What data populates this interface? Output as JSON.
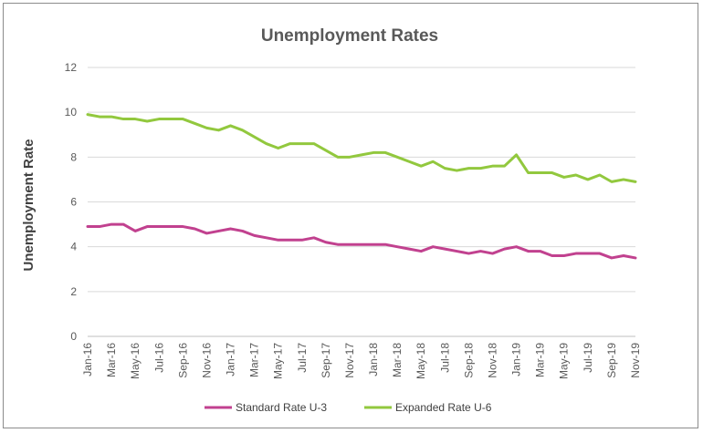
{
  "chart_data": {
    "type": "line",
    "title": "Unemployment Rates",
    "xlabel": "",
    "ylabel": "Unemployment Rate",
    "ylim": [
      0,
      12
    ],
    "yticks": [
      0,
      2,
      4,
      6,
      8,
      10,
      12
    ],
    "grid": "horizontal",
    "legend": "bottom",
    "x": [
      "Jan-16",
      "Feb-16",
      "Mar-16",
      "Apr-16",
      "May-16",
      "Jun-16",
      "Jul-16",
      "Aug-16",
      "Sep-16",
      "Oct-16",
      "Nov-16",
      "Dec-16",
      "Jan-17",
      "Feb-17",
      "Mar-17",
      "Apr-17",
      "May-17",
      "Jun-17",
      "Jul-17",
      "Aug-17",
      "Sep-17",
      "Oct-17",
      "Nov-17",
      "Dec-17",
      "Jan-18",
      "Feb-18",
      "Mar-18",
      "Apr-18",
      "May-18",
      "Jun-18",
      "Jul-18",
      "Aug-18",
      "Sep-18",
      "Oct-18",
      "Nov-18",
      "Dec-18",
      "Jan-19",
      "Feb-19",
      "Mar-19",
      "Apr-19",
      "May-19",
      "Jun-19",
      "Jul-19",
      "Aug-19",
      "Sep-19",
      "Oct-19",
      "Nov-19"
    ],
    "x_tick_labels": [
      "Jan-16",
      "Mar-16",
      "May-16",
      "Jul-16",
      "Sep-16",
      "Nov-16",
      "Jan-17",
      "Mar-17",
      "May-17",
      "Jul-17",
      "Sep-17",
      "Nov-17",
      "Jan-18",
      "Mar-18",
      "May-18",
      "Jul-18",
      "Sep-18",
      "Nov-18",
      "Jan-19",
      "Mar-19",
      "May-19",
      "Jul-19",
      "Sep-19",
      "Nov-19"
    ],
    "series": [
      {
        "name": "Standard Rate U-3",
        "color": "#c1418f",
        "values": [
          4.9,
          4.9,
          5.0,
          5.0,
          4.7,
          4.9,
          4.9,
          4.9,
          4.9,
          4.8,
          4.6,
          4.7,
          4.8,
          4.7,
          4.5,
          4.4,
          4.3,
          4.3,
          4.3,
          4.4,
          4.2,
          4.1,
          4.1,
          4.1,
          4.1,
          4.1,
          4.0,
          3.9,
          3.8,
          4.0,
          3.9,
          3.8,
          3.7,
          3.8,
          3.7,
          3.9,
          4.0,
          3.8,
          3.8,
          3.6,
          3.6,
          3.7,
          3.7,
          3.7,
          3.5,
          3.6,
          3.5
        ]
      },
      {
        "name": "Expanded Rate U-6",
        "color": "#92c83e",
        "values": [
          9.9,
          9.8,
          9.8,
          9.7,
          9.7,
          9.6,
          9.7,
          9.7,
          9.7,
          9.5,
          9.3,
          9.2,
          9.4,
          9.2,
          8.9,
          8.6,
          8.4,
          8.6,
          8.6,
          8.6,
          8.3,
          8.0,
          8.0,
          8.1,
          8.2,
          8.2,
          8.0,
          7.8,
          7.6,
          7.8,
          7.5,
          7.4,
          7.5,
          7.5,
          7.6,
          7.6,
          8.1,
          7.3,
          7.3,
          7.3,
          7.1,
          7.2,
          7.0,
          7.2,
          6.9,
          7.0,
          6.9
        ]
      }
    ]
  }
}
